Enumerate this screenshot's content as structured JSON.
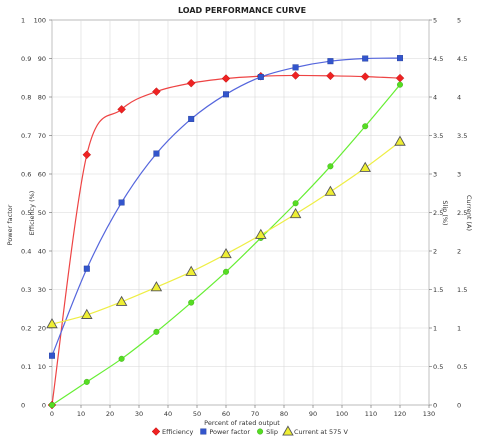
{
  "chart_data": {
    "type": "line",
    "title": "LOAD PERFORMANCE CURVE",
    "xlabel": "Percent of rated output",
    "xlim": [
      0,
      130
    ],
    "x_ticks": [
      "0",
      "10",
      "20",
      "30",
      "40",
      "50",
      "60",
      "70",
      "80",
      "90",
      "100",
      "110",
      "120",
      "130"
    ],
    "left_axes": [
      {
        "label": "Power factor",
        "lim": [
          0,
          1
        ],
        "ticks": [
          "0",
          "0.1",
          "0.2",
          "0.3",
          "0.4",
          "0.5",
          "0.6",
          "0.7",
          "0.8",
          "0.9",
          "1"
        ]
      },
      {
        "label": "Efficiency (%)",
        "lim": [
          0,
          100
        ],
        "ticks": [
          "0",
          "10",
          "20",
          "30",
          "40",
          "50",
          "60",
          "70",
          "80",
          "90",
          "100"
        ]
      }
    ],
    "right_axes": [
      {
        "label": "Slip (%)",
        "lim": [
          0,
          5
        ],
        "ticks": [
          "0",
          "0.5",
          "1",
          "1.5",
          "2",
          "2.5",
          "3",
          "3.5",
          "4",
          "4.5",
          "5"
        ]
      },
      {
        "label": "Current (A)",
        "lim": [
          0,
          5
        ],
        "ticks": [
          "0",
          "0.5",
          "1",
          "1.5",
          "2",
          "2.5",
          "3",
          "3.5",
          "4",
          "4.5",
          "5"
        ]
      }
    ],
    "grid": true,
    "legend_position": "bottom",
    "series": [
      {
        "name": "Efficiency",
        "axis": "efficiency",
        "color": "#ee2222",
        "marker": "diamond",
        "x": [
          0,
          12,
          24,
          36,
          48,
          60,
          72,
          84,
          96,
          108,
          120
        ],
        "y": [
          0,
          65,
          76.8,
          81.4,
          83.6,
          84.8,
          85.4,
          85.6,
          85.5,
          85.3,
          84.9
        ]
      },
      {
        "name": "Power factor",
        "axis": "power_factor",
        "color": "#3355cc",
        "marker": "square",
        "x": [
          0,
          12,
          24,
          36,
          48,
          60,
          72,
          84,
          96,
          108,
          120
        ],
        "y": [
          0.128,
          0.354,
          0.526,
          0.653,
          0.743,
          0.807,
          0.852,
          0.877,
          0.893,
          0.9,
          0.901
        ]
      },
      {
        "name": "Slip",
        "axis": "slip",
        "color": "#55dd22",
        "marker": "circle",
        "x": [
          0,
          12,
          24,
          36,
          48,
          60,
          72,
          84,
          96,
          108,
          120
        ],
        "y": [
          0,
          0.3,
          0.6,
          0.95,
          1.33,
          1.73,
          2.17,
          2.62,
          3.1,
          3.62,
          4.16
        ]
      },
      {
        "name": "Current at 575 V",
        "axis": "current",
        "color": "#eeee33",
        "marker": "triangle",
        "x": [
          0,
          12,
          24,
          36,
          48,
          60,
          72,
          84,
          96,
          108,
          120
        ],
        "y": [
          1.05,
          1.17,
          1.34,
          1.53,
          1.73,
          1.96,
          2.21,
          2.48,
          2.77,
          3.08,
          3.42
        ]
      }
    ]
  }
}
